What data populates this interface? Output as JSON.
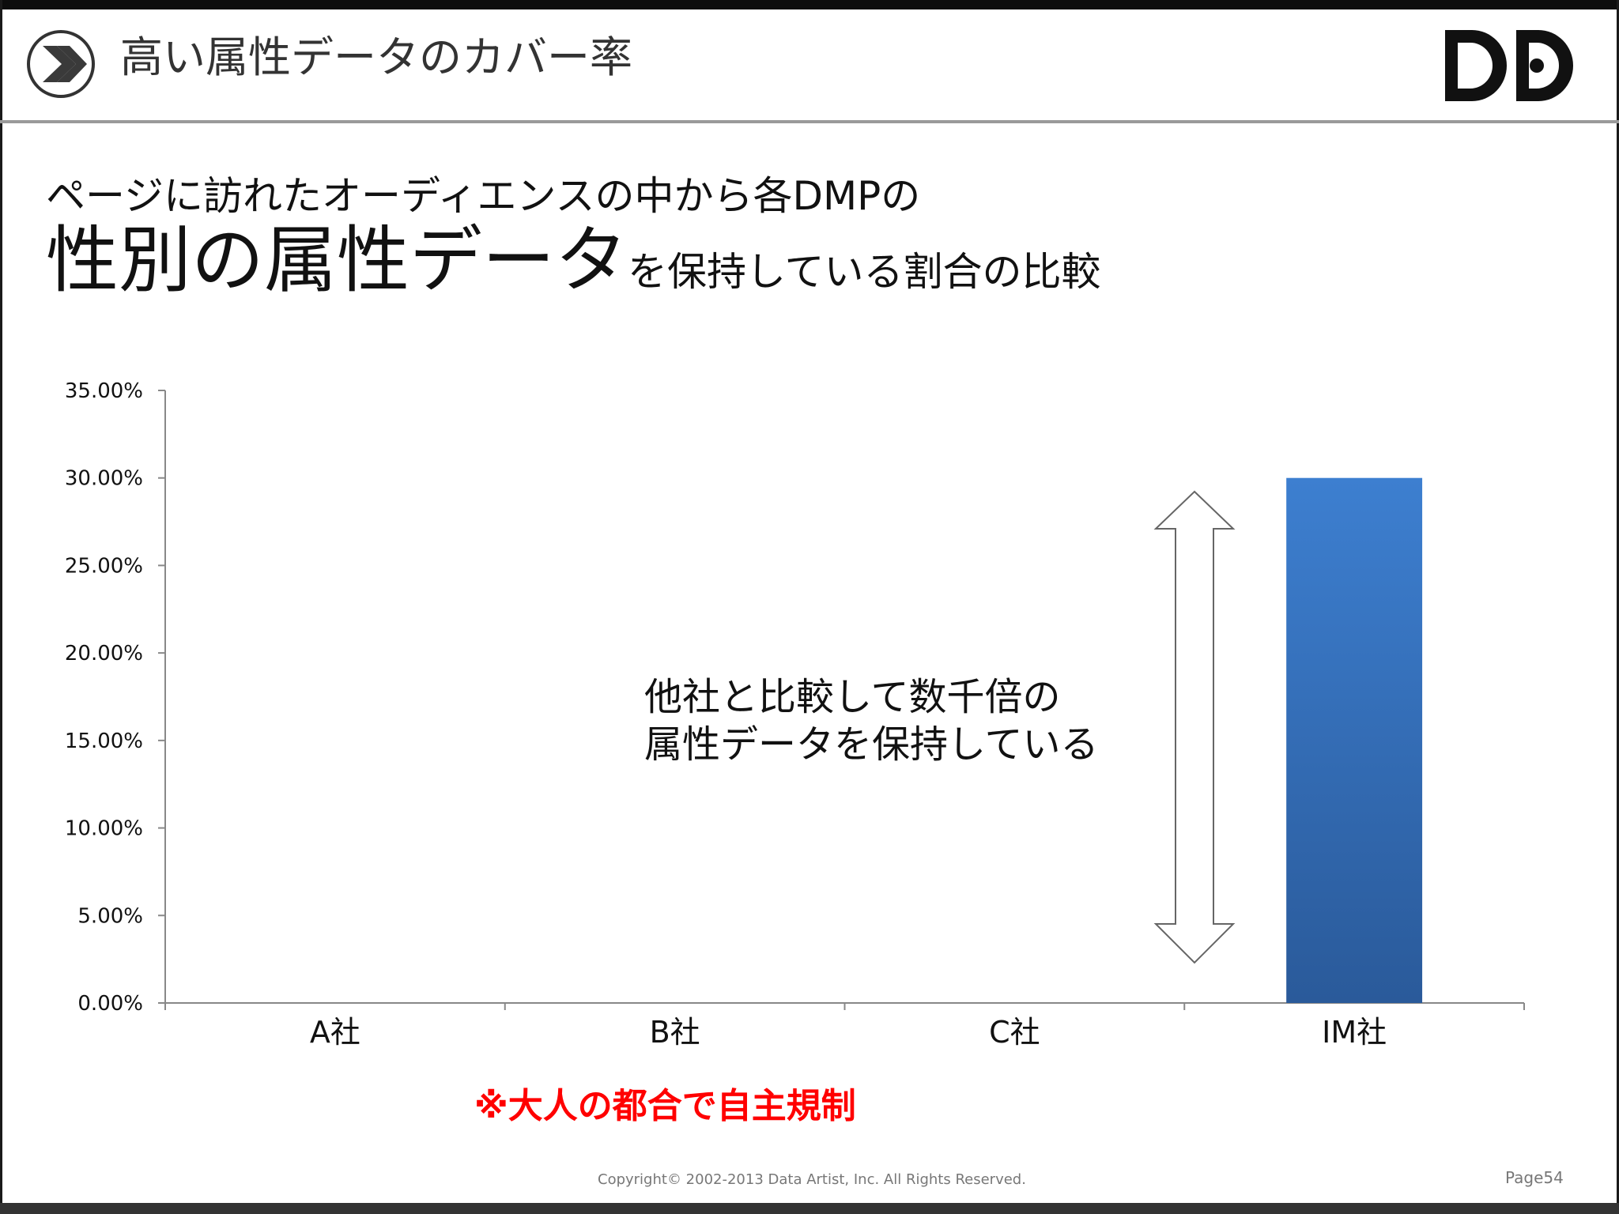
{
  "header": {
    "title": "高い属性データのカバー率"
  },
  "subtitle": {
    "line1": "ページに訪れたオーディエンスの中から各DMPの",
    "line2_emphasis": "性別の属性データ",
    "line2_rest": "を保持している割合の比較"
  },
  "callout": {
    "line1": "他社と比較して数千倍の",
    "line2": "属性データを保持している"
  },
  "disclaimer": "※大人の都合で自主規制",
  "footer": {
    "copyright": "Copyright© 2002-2013 Data Artist, Inc.   All Rights Reserved.",
    "page": "Page54"
  },
  "colors": {
    "bar_top": "#3d7fd0",
    "bar_bottom": "#2a5a9a",
    "axis": "#888888"
  },
  "chart_data": {
    "type": "bar",
    "categories": [
      "A社",
      "B社",
      "C社",
      "IM社"
    ],
    "values": [
      0.0,
      0.0,
      0.0,
      30.0
    ],
    "ylim": [
      0,
      35
    ],
    "yticks": [
      0,
      5,
      10,
      15,
      20,
      25,
      30,
      35
    ],
    "ytick_labels": [
      "0.00%",
      "5.00%",
      "10.00%",
      "15.00%",
      "20.00%",
      "25.00%",
      "30.00%",
      "35.00%"
    ],
    "title": "",
    "xlabel": "",
    "ylabel": "",
    "grid": false,
    "legend": "none"
  }
}
